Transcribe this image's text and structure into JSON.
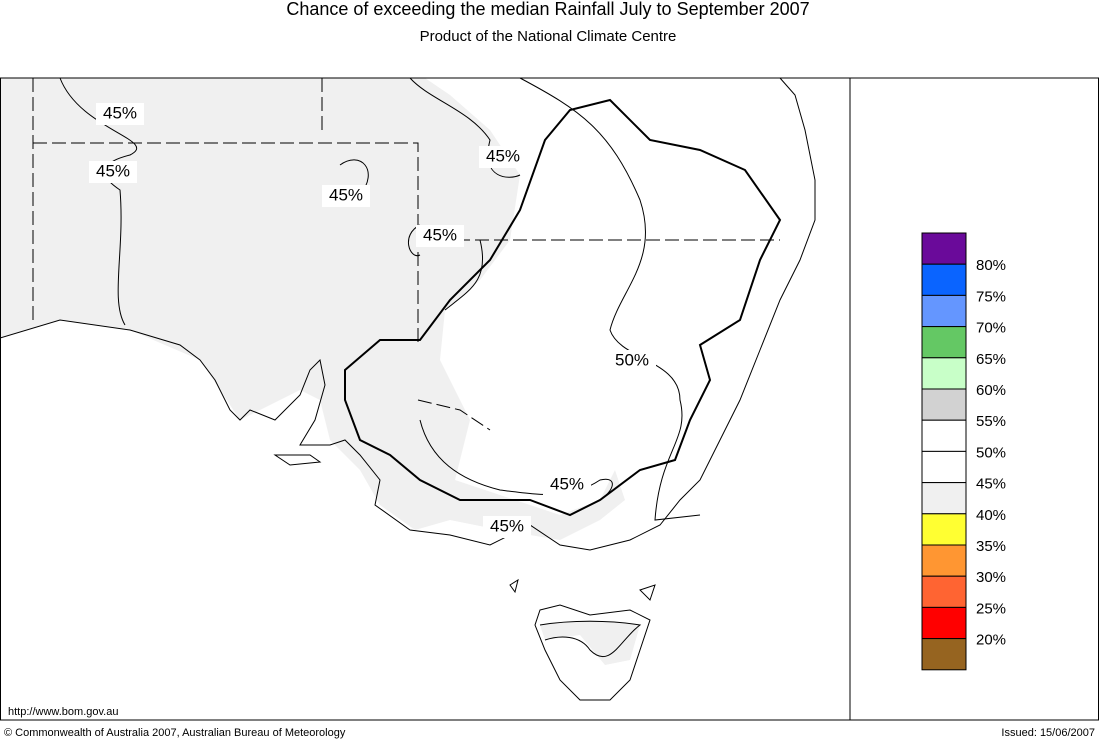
{
  "header": {
    "title": "Chance of exceeding the median Rainfall July to September 2007",
    "subtitle": "Product of the National Climate Centre"
  },
  "contour_labels": [
    "45%",
    "45%",
    "45%",
    "45%",
    "45%",
    "50%",
    "45%",
    "45%"
  ],
  "legend": {
    "colors": [
      "#6a0a9a",
      "#0a64ff",
      "#6496ff",
      "#64c864",
      "#c8ffc8",
      "#d2d2d2",
      "#ffffff",
      "#ffffff",
      "#f0f0f0",
      "#ffff32",
      "#ff9632",
      "#ff6432",
      "#ff0000",
      "#966420"
    ],
    "labels": [
      "80%",
      "75%",
      "70%",
      "65%",
      "60%",
      "55%",
      "50%",
      "45%",
      "40%",
      "35%",
      "30%",
      "25%",
      "20%"
    ]
  },
  "footer": {
    "url": "http://www.bom.gov.au",
    "copyright": "© Commonwealth of Australia 2007, Australian Bureau of Meteorology",
    "issued": "Issued: 15/06/2007"
  }
}
